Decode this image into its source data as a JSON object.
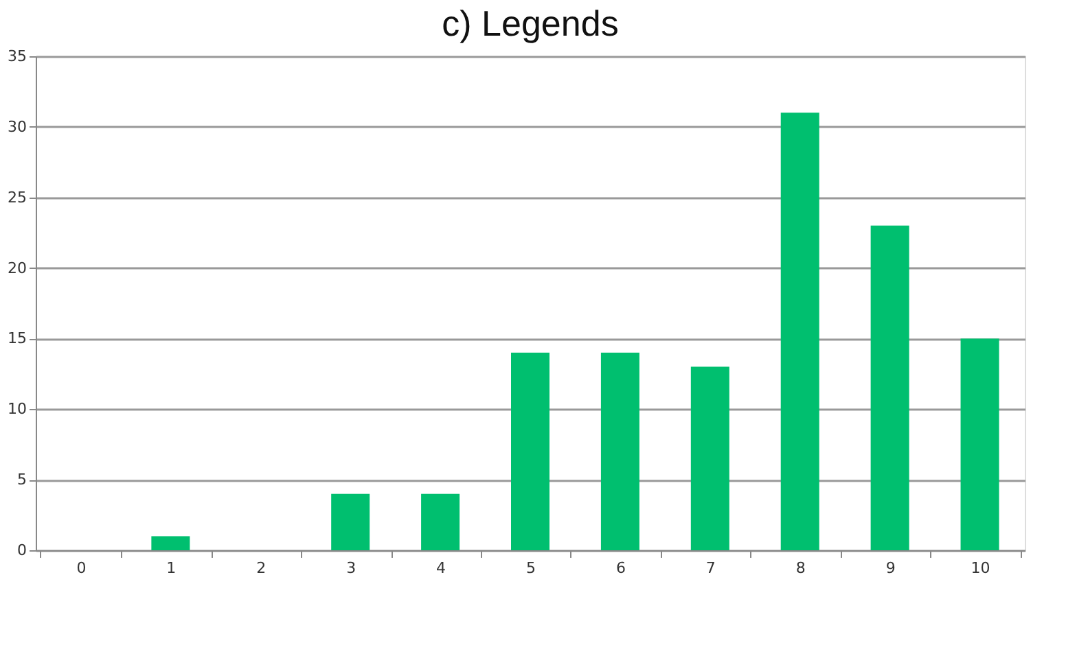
{
  "chart_data": {
    "type": "bar",
    "title": "c) Legends",
    "categories": [
      "0",
      "1",
      "2",
      "3",
      "4",
      "5",
      "6",
      "7",
      "8",
      "9",
      "10"
    ],
    "values": [
      0,
      1,
      0,
      4,
      4,
      14,
      14,
      13,
      31,
      23,
      15
    ],
    "color": "#00bf6f",
    "ylim": [
      0,
      35
    ],
    "yticks": [
      0,
      5,
      10,
      15,
      20,
      25,
      30,
      35
    ],
    "grid": "y"
  }
}
